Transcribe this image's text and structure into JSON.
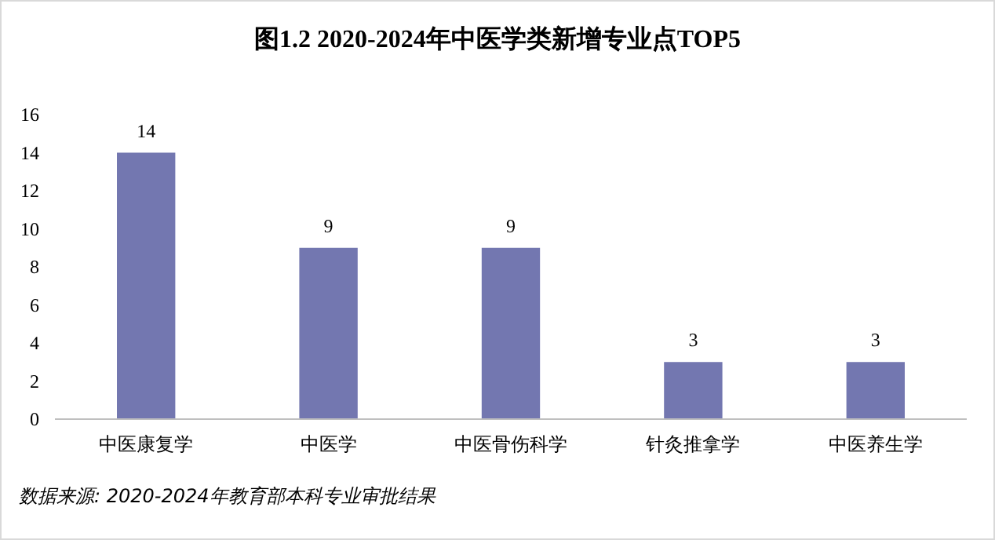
{
  "chart_data": {
    "type": "bar",
    "title": "图1.2  2020-2024年中医学类新增专业点TOP5",
    "categories": [
      "中医康复学",
      "中医学",
      "中医骨伤科学",
      "针灸推拿学",
      "中医养生学"
    ],
    "values": [
      14,
      9,
      9,
      3,
      3
    ],
    "color": "#7377b0",
    "ylim": [
      0,
      16
    ],
    "yticks": [
      0,
      2,
      4,
      6,
      8,
      10,
      12,
      14,
      16
    ],
    "grid": false,
    "data_labels": true,
    "annotations": [
      "数据来源:  2020-2024年教育部本科专业审批结果"
    ]
  }
}
